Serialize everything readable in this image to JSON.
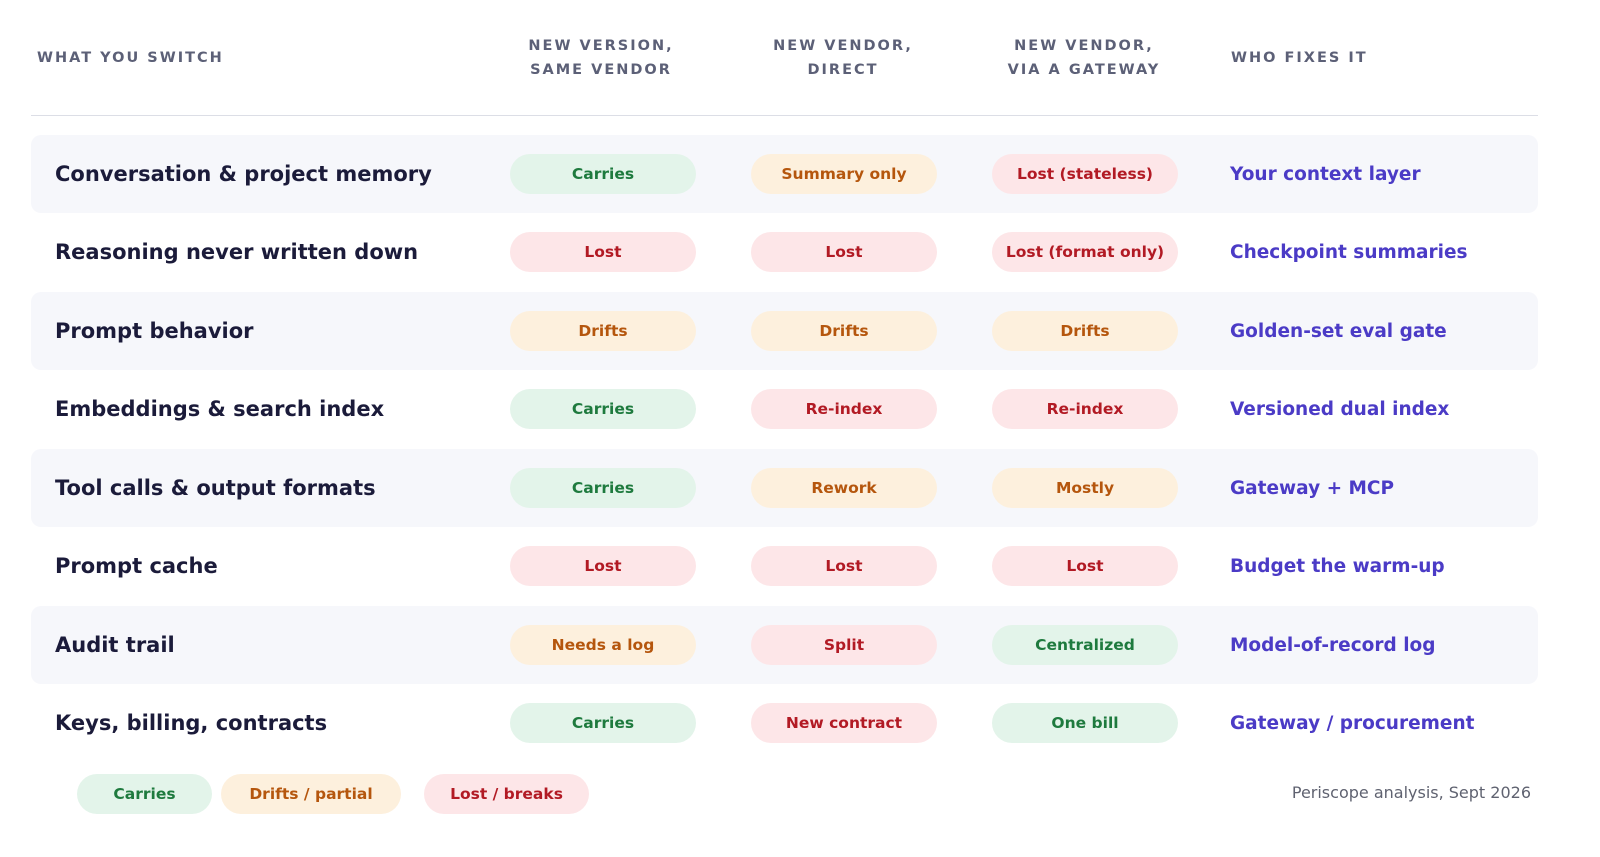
{
  "header": {
    "col_what": "WHAT YOU SWITCH",
    "col_same_vendor": "NEW VERSION,\nSAME VENDOR",
    "col_direct": "NEW VENDOR,\nDIRECT",
    "col_gateway": "NEW VENDOR,\nVIA A GATEWAY",
    "col_fix": "WHO FIXES IT"
  },
  "rows": [
    {
      "label": "Conversation & project memory",
      "c1": "Carries",
      "c2": "Summary only",
      "c3": "Lost (stateless)",
      "fix": "Your context layer",
      "s1": "good",
      "s2": "mid",
      "s3": "bad"
    },
    {
      "label": "Reasoning never written down",
      "c1": "Lost",
      "c2": "Lost",
      "c3": "Lost (format only)",
      "fix": "Checkpoint summaries",
      "s1": "bad",
      "s2": "bad",
      "s3": "bad"
    },
    {
      "label": "Prompt behavior",
      "c1": "Drifts",
      "c2": "Drifts",
      "c3": "Drifts",
      "fix": "Golden-set eval gate",
      "s1": "mid",
      "s2": "mid",
      "s3": "mid"
    },
    {
      "label": "Embeddings & search index",
      "c1": "Carries",
      "c2": "Re-index",
      "c3": "Re-index",
      "fix": "Versioned dual index",
      "s1": "good",
      "s2": "bad",
      "s3": "bad"
    },
    {
      "label": "Tool calls & output formats",
      "c1": "Carries",
      "c2": "Rework",
      "c3": "Mostly",
      "fix": "Gateway + MCP",
      "s1": "good",
      "s2": "mid",
      "s3": "mid"
    },
    {
      "label": "Prompt cache",
      "c1": "Lost",
      "c2": "Lost",
      "c3": "Lost",
      "fix": "Budget the warm-up",
      "s1": "bad",
      "s2": "bad",
      "s3": "bad"
    },
    {
      "label": "Audit trail",
      "c1": "Needs a log",
      "c2": "Split",
      "c3": "Centralized",
      "fix": "Model-of-record log",
      "s1": "mid",
      "s2": "bad",
      "s3": "good"
    },
    {
      "label": "Keys, billing, contracts",
      "c1": "Carries",
      "c2": "New contract",
      "c3": "One bill",
      "fix": "Gateway / procurement",
      "s1": "good",
      "s2": "bad",
      "s3": "good"
    }
  ],
  "legend": {
    "carries": "Carries",
    "drifts": "Drifts / partial",
    "lost": "Lost / breaks"
  },
  "source": "Periscope analysis, Sept 2026",
  "colors": {
    "good_bg": "#e3f4ea",
    "good_text": "#1e7a3e",
    "mid_bg": "#fdf0dd",
    "mid_text": "#b5560d",
    "bad_bg": "#fde6e8",
    "bad_text": "#b21a24",
    "fix_text": "#4b3bc6"
  }
}
